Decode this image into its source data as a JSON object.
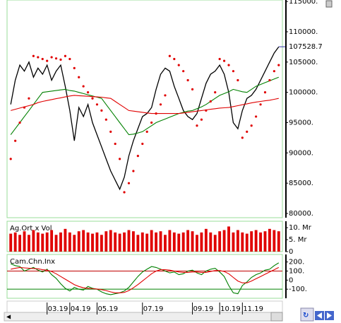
{
  "chart_data": [
    {
      "type": "line",
      "categories": [
        null,
        null,
        null,
        null,
        null,
        null,
        null,
        null,
        "03.19",
        null,
        null,
        null,
        null,
        "04.19",
        null,
        null,
        null,
        null,
        null,
        "05.19",
        null,
        null,
        null,
        null,
        null,
        null,
        null,
        null,
        null,
        "07.19",
        null,
        null,
        null,
        null,
        null,
        null,
        null,
        null,
        null,
        null,
        "09.19",
        null,
        null,
        null,
        null,
        null,
        "10.19",
        null,
        null,
        null,
        null,
        "11.19",
        null,
        null,
        null,
        null,
        null,
        null,
        null,
        null
      ],
      "ylim": [
        79300,
        115250
      ],
      "yticks": [
        {
          "value": 80000,
          "label": "80000."
        },
        {
          "value": 85000,
          "label": "85000."
        },
        {
          "value": 90000,
          "label": "90000."
        },
        {
          "value": 95000,
          "label": "95000."
        },
        {
          "value": 100000,
          "label": "100000."
        },
        {
          "value": 105000,
          "label": "105000."
        },
        {
          "value": 110000,
          "label": "110000."
        },
        {
          "value": 115000,
          "label": "115000."
        }
      ],
      "last_value": 107528.7,
      "last_value_color": "#3333aa",
      "series": [
        {
          "style": "line",
          "color": "#000000",
          "values": [
            98000,
            102000,
            104500,
            103500,
            105000,
            102500,
            104000,
            103000,
            104500,
            102000,
            103500,
            104500,
            101000,
            97000,
            92000,
            97500,
            96000,
            98000,
            95000,
            93000,
            91000,
            89000,
            87000,
            85500,
            84000,
            86000,
            89500,
            92000,
            94000,
            96000,
            96500,
            97500,
            100500,
            103000,
            104000,
            103500,
            101000,
            99000,
            97000,
            96000,
            95500,
            96500,
            99000,
            101500,
            103000,
            103500,
            104500,
            103000,
            100000,
            95000,
            94000,
            97000,
            99000,
            99500,
            100500,
            102000,
            103500,
            105000,
            106500,
            107528.7
          ]
        },
        {
          "style": "line",
          "color": "#008000",
          "values": [
            93000,
            94000,
            95000,
            96000,
            97000,
            98000,
            99000,
            100000,
            100100,
            100200,
            100300,
            100400,
            100500,
            100300,
            100200,
            100000,
            99800,
            99600,
            99400,
            99200,
            99000,
            98000,
            97000,
            96000,
            95000,
            94000,
            93000,
            93100,
            93300,
            93500,
            94000,
            94500,
            95000,
            95300,
            95600,
            95900,
            96200,
            96500,
            96700,
            96900,
            97000,
            97300,
            97600,
            98000,
            98500,
            99000,
            99500,
            99800,
            100100,
            100500,
            100300,
            100100,
            100000,
            100500,
            101000,
            101300,
            101600,
            101900,
            102200,
            102500
          ]
        },
        {
          "style": "line",
          "color": "#e00000",
          "values": [
            97000,
            97200,
            97400,
            97600,
            97800,
            98000,
            98300,
            98500,
            98650,
            98800,
            98950,
            99100,
            99250,
            99400,
            99500,
            99450,
            99400,
            99350,
            99300,
            99250,
            99200,
            99100,
            99000,
            98500,
            98000,
            97500,
            97000,
            96900,
            96800,
            96700,
            96600,
            96500,
            96500,
            96500,
            96500,
            96500,
            96500,
            96500,
            96600,
            96700,
            96800,
            96900,
            97000,
            97100,
            97200,
            97300,
            97400,
            97450,
            97500,
            97650,
            97800,
            97950,
            98100,
            98250,
            98400,
            98500,
            98600,
            98700,
            98850,
            99000
          ]
        },
        {
          "style": "dots",
          "color": "#e00000",
          "values": [
            89000,
            92000,
            95000,
            97500,
            99000,
            106000,
            105800,
            105500,
            105200,
            105800,
            105600,
            105400,
            106000,
            105500,
            104000,
            102500,
            101000,
            100000,
            99000,
            98000,
            97000,
            95500,
            93500,
            91500,
            89000,
            83500,
            85000,
            87000,
            89500,
            91500,
            93500,
            95000,
            96500,
            98000,
            99500,
            106000,
            105500,
            104500,
            103500,
            102000,
            100500,
            94500,
            95500,
            97000,
            98500,
            100000,
            105500,
            105200,
            104500,
            103500,
            102000,
            92500,
            93500,
            94500,
            96000,
            98000,
            100000,
            102000,
            103500,
            104500
          ]
        }
      ]
    },
    {
      "type": "bar",
      "title": "Ag.Ort x Vol",
      "color": "#e00000",
      "ylim": [
        0,
        12700000
      ],
      "yticks": [
        0,
        {
          "value": 5000000,
          "label": "5. Mr"
        },
        {
          "value": 10000000,
          "label": "10. Mr"
        }
      ],
      "values": [
        7500000,
        8000000,
        7000000,
        8500000,
        7000000,
        9000000,
        8000000,
        7500000,
        8000000,
        9000000,
        7000000,
        8000000,
        9500000,
        8000000,
        7000000,
        8500000,
        9000000,
        8000000,
        7500000,
        8000000,
        7000000,
        8500000,
        9000000,
        8000000,
        7500000,
        8000000,
        9000000,
        8500000,
        7000000,
        8000000,
        7500000,
        9000000,
        8000000,
        8500000,
        7000000,
        9000000,
        8000000,
        7500000,
        8000000,
        9000000,
        8500000,
        7000000,
        8000000,
        9500000,
        8000000,
        7000000,
        8500000,
        9000000,
        10500000,
        8000000,
        9000000,
        8000000,
        7500000,
        8500000,
        9000000,
        8000000,
        8500000,
        9500000,
        9000000,
        8500000
      ]
    },
    {
      "type": "line",
      "title": "Cam.Chn.Inx",
      "ylim": [
        -200,
        283
      ],
      "yticks": [
        {
          "value": -100,
          "label": "-100."
        },
        0,
        {
          "value": 100,
          "label": "100."
        },
        {
          "value": 200,
          "label": "200."
        }
      ],
      "levels": [
        {
          "value": 100,
          "color": "#c00000"
        },
        {
          "value": -100,
          "color": "#008000"
        }
      ],
      "series": [
        {
          "style": "line",
          "color": "#008000",
          "values": [
            180,
            160,
            150,
            100,
            120,
            140,
            110,
            90,
            120,
            60,
            20,
            -40,
            -90,
            -120,
            -80,
            -100,
            -110,
            -70,
            -90,
            -100,
            -130,
            -150,
            -160,
            -150,
            -140,
            -120,
            -80,
            -20,
            40,
            90,
            120,
            150,
            140,
            120,
            100,
            80,
            90,
            60,
            70,
            100,
            110,
            80,
            60,
            100,
            120,
            130,
            90,
            40,
            -60,
            -140,
            -150,
            -60,
            -20,
            30,
            60,
            80,
            110,
            120,
            160,
            190
          ]
        },
        {
          "style": "line",
          "color": "#e00000",
          "values": [
            120,
            130,
            140,
            135,
            130,
            128,
            125,
            115,
            110,
            95,
            70,
            40,
            10,
            -20,
            -50,
            -70,
            -85,
            -90,
            -95,
            -98,
            -105,
            -115,
            -130,
            -140,
            -140,
            -135,
            -115,
            -85,
            -50,
            -10,
            30,
            70,
            100,
            115,
            115,
            110,
            100,
            90,
            85,
            85,
            90,
            90,
            85,
            85,
            95,
            105,
            105,
            95,
            70,
            30,
            -10,
            -30,
            -30,
            -10,
            15,
            40,
            65,
            90,
            115,
            140
          ]
        }
      ]
    }
  ]
}
